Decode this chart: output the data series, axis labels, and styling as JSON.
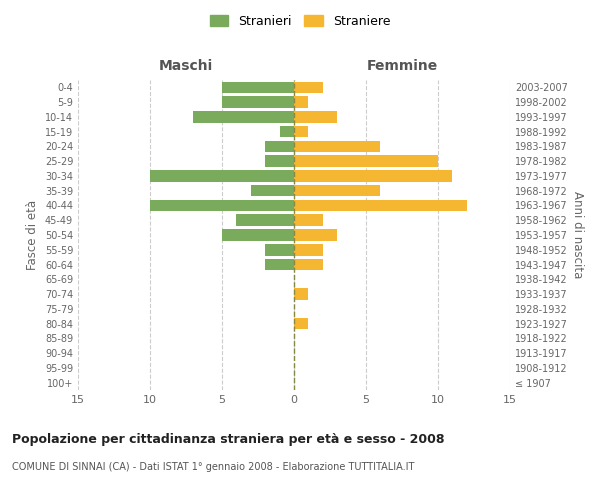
{
  "age_groups": [
    "100+",
    "95-99",
    "90-94",
    "85-89",
    "80-84",
    "75-79",
    "70-74",
    "65-69",
    "60-64",
    "55-59",
    "50-54",
    "45-49",
    "40-44",
    "35-39",
    "30-34",
    "25-29",
    "20-24",
    "15-19",
    "10-14",
    "5-9",
    "0-4"
  ],
  "birth_years": [
    "≤ 1907",
    "1908-1912",
    "1913-1917",
    "1918-1922",
    "1923-1927",
    "1928-1932",
    "1933-1937",
    "1938-1942",
    "1943-1947",
    "1948-1952",
    "1953-1957",
    "1958-1962",
    "1963-1967",
    "1968-1972",
    "1973-1977",
    "1978-1982",
    "1983-1987",
    "1988-1992",
    "1993-1997",
    "1998-2002",
    "2003-2007"
  ],
  "males": [
    0,
    0,
    0,
    0,
    0,
    0,
    0,
    0,
    2,
    2,
    5,
    4,
    10,
    3,
    10,
    2,
    2,
    1,
    7,
    5,
    5
  ],
  "females": [
    0,
    0,
    0,
    0,
    1,
    0,
    1,
    0,
    2,
    2,
    3,
    2,
    12,
    6,
    11,
    10,
    6,
    1,
    3,
    1,
    2
  ],
  "male_color": "#7aab5d",
  "female_color": "#f5b731",
  "grid_color": "#cccccc",
  "center_line_color": "#888844",
  "title": "Popolazione per cittadinanza straniera per età e sesso - 2008",
  "subtitle": "COMUNE DI SINNAI (CA) - Dati ISTAT 1° gennaio 2008 - Elaborazione TUTTITALIA.IT",
  "xlabel_left": "Maschi",
  "xlabel_right": "Femmine",
  "ylabel_left": "Fasce di età",
  "ylabel_right": "Anni di nascita",
  "legend_male": "Stranieri",
  "legend_female": "Straniere",
  "xlim": 15,
  "background_color": "#ffffff"
}
